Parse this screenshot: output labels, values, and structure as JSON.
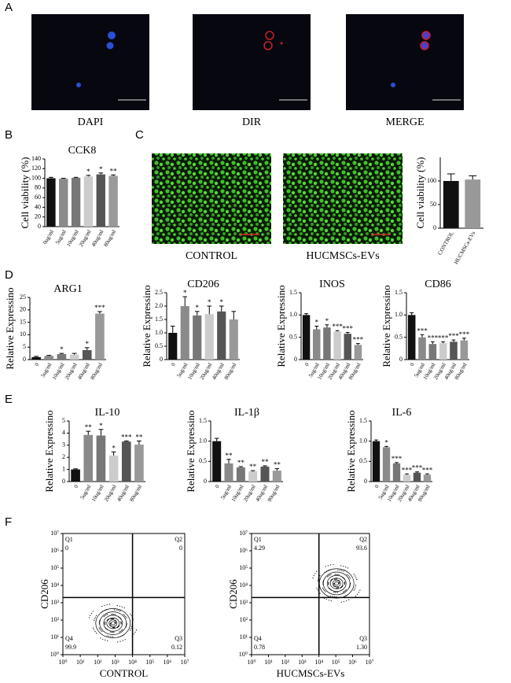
{
  "panel_labels": [
    "A",
    "B",
    "C",
    "D",
    "E",
    "F"
  ],
  "image_captions": {
    "A": [
      "DAPI",
      "DIR",
      "MERGE"
    ],
    "C": [
      "CONTROL",
      "HUCMSCs-EVs"
    ]
  },
  "chart_data": [
    {
      "type": "bar",
      "title": "CCK8",
      "ylabel": "Cell viability (%)",
      "categories": [
        "0ug/ml",
        "5ug/ml",
        "10ug/ml",
        "20ug/ml",
        "40ug/ml",
        "80ug/ml"
      ],
      "values": [
        100,
        99,
        101,
        104,
        108,
        105
      ],
      "errors": [
        2,
        1,
        1,
        2,
        3,
        2
      ],
      "significance": [
        null,
        null,
        null,
        "*",
        "*",
        "**"
      ],
      "colors": [
        "#111111",
        "#8a8a8a",
        "#777777",
        "#cccccc",
        "#555555",
        "#999999"
      ],
      "ylim": [
        0,
        140
      ],
      "yticks": [
        0,
        20,
        40,
        60,
        80,
        100,
        120,
        140
      ]
    },
    {
      "type": "bar",
      "ylabel": "Cell viability (%)",
      "categories": [
        "CONTROL",
        "HUCMSCs-EVs"
      ],
      "values": [
        100,
        103
      ],
      "errors": [
        15,
        8
      ],
      "colors": [
        "#111111",
        "#999999"
      ],
      "ylim": [
        0,
        150
      ],
      "yticks": [
        0,
        50,
        100
      ]
    },
    {
      "type": "bar",
      "title": "ARG1",
      "ylabel": "Relative Expressino",
      "categories": [
        "0",
        "5ug/ml",
        "10ug/ml",
        "20ug/ml",
        "40ug/ml",
        "80ug/ml"
      ],
      "values": [
        1,
        1.5,
        2.2,
        2,
        3.8,
        18.5
      ],
      "errors": [
        0.3,
        0.2,
        0.3,
        0.5,
        1,
        0.8
      ],
      "significance": [
        null,
        null,
        "*",
        null,
        "*",
        "***"
      ],
      "colors": [
        "#111111",
        "#8a8a8a",
        "#777777",
        "#cccccc",
        "#555555",
        "#999999"
      ],
      "ylim": [
        0,
        25
      ],
      "yticks": [
        0,
        5,
        10,
        15,
        20,
        25
      ]
    },
    {
      "type": "bar",
      "title": "CD206",
      "ylabel": "Relative Expressino",
      "categories": [
        "0",
        "5ug/ml",
        "10ug/ml",
        "20ug/ml",
        "40ug/ml",
        "80ug/ml"
      ],
      "values": [
        1,
        2,
        1.65,
        1.7,
        1.8,
        1.5
      ],
      "errors": [
        0.25,
        0.35,
        0.15,
        0.3,
        0.2,
        0.3
      ],
      "significance": [
        null,
        "*",
        "*",
        "*",
        "*",
        null
      ],
      "colors": [
        "#111111",
        "#8a8a8a",
        "#777777",
        "#cccccc",
        "#555555",
        "#999999"
      ],
      "ylim": [
        0,
        2.5
      ],
      "yticks": [
        0,
        0.5,
        {
          "value": 1,
          "label": "1.0"
        },
        1.5,
        {
          "value": 2,
          "label": "2.0"
        },
        2.5
      ]
    },
    {
      "type": "bar",
      "title": "INOS",
      "ylabel": "Relative Expressino",
      "categories": [
        "0",
        "5ug/ml",
        "10ug/ml",
        "20ug/ml",
        "40ug/ml",
        "80ug/ml"
      ],
      "values": [
        1,
        0.68,
        0.72,
        0.63,
        0.58,
        0.33
      ],
      "errors": [
        0.03,
        0.07,
        0.06,
        0.02,
        0.03,
        0.03
      ],
      "significance": [
        null,
        "*",
        "*",
        "***",
        "***",
        "***"
      ],
      "colors": [
        "#111111",
        "#8a8a8a",
        "#777777",
        "#cccccc",
        "#555555",
        "#999999"
      ],
      "ylim": [
        0,
        1.5
      ],
      "yticks": [
        0,
        0.5,
        {
          "value": 1,
          "label": "1.0"
        },
        1.5
      ]
    },
    {
      "type": "bar",
      "title": "CD86",
      "ylabel": "Relative Expressino",
      "categories": [
        "0",
        "5ug/ml",
        "10ug/ml",
        "20ug/ml",
        "40ug/ml",
        "80ug/ml"
      ],
      "values": [
        1,
        0.5,
        0.35,
        0.37,
        0.4,
        0.43
      ],
      "errors": [
        0.05,
        0.06,
        0.05,
        0.03,
        0.04,
        0.05
      ],
      "significance": [
        null,
        "***",
        "***",
        "***",
        "***",
        "***"
      ],
      "colors": [
        "#111111",
        "#8a8a8a",
        "#777777",
        "#cccccc",
        "#555555",
        "#999999"
      ],
      "ylim": [
        0,
        1.5
      ],
      "yticks": [
        0,
        0.5,
        {
          "value": 1,
          "label": "1.0"
        },
        1.5
      ]
    },
    {
      "type": "bar",
      "title": "IL-10",
      "ylabel": "Relative Expressino",
      "categories": [
        "0",
        "5ug/ml",
        "10ug/ml",
        "20ug/ml",
        "40ug/ml",
        "80ug/ml"
      ],
      "values": [
        1,
        3.85,
        3.8,
        2.15,
        3.3,
        3.05
      ],
      "errors": [
        0.05,
        0.3,
        0.5,
        0.3,
        0.05,
        0.3
      ],
      "significance": [
        null,
        "**",
        "*",
        "*",
        "***",
        "**"
      ],
      "colors": [
        "#111111",
        "#8a8a8a",
        "#777777",
        "#cccccc",
        "#555555",
        "#999999"
      ],
      "ylim": [
        0,
        5
      ],
      "yticks": [
        0,
        1,
        2,
        3,
        4,
        5
      ]
    },
    {
      "type": "bar",
      "title": "IL-1β",
      "ylabel": "Relative Expressino",
      "categories": [
        "0",
        "5ug/ml",
        "10ug/ml",
        "20ug/ml",
        "40ug/ml",
        "80ug/ml"
      ],
      "values": [
        1,
        0.45,
        0.35,
        0.25,
        0.37,
        0.27
      ],
      "errors": [
        0.07,
        0.1,
        0.02,
        0.02,
        0.02,
        0.05
      ],
      "significance": [
        null,
        "**",
        "**",
        "**",
        "**",
        "**"
      ],
      "colors": [
        "#111111",
        "#8a8a8a",
        "#777777",
        "#cccccc",
        "#555555",
        "#999999"
      ],
      "ylim": [
        0,
        1.5
      ],
      "yticks": [
        0,
        0.5,
        {
          "value": 1,
          "label": "1.0"
        },
        1.5
      ]
    },
    {
      "type": "bar",
      "title": "IL-6",
      "ylabel": "Relative Expressino",
      "categories": [
        "0",
        "5ug/ml",
        "10ug/ml",
        "20ug/ml",
        "40ug/ml",
        "80ug/ml"
      ],
      "values": [
        1,
        0.85,
        0.45,
        0.17,
        0.22,
        0.17
      ],
      "errors": [
        0.03,
        0.02,
        0.02,
        0.02,
        0.02,
        0.02
      ],
      "significance": [
        null,
        "*",
        "***",
        "***",
        "***",
        "***"
      ],
      "colors": [
        "#111111",
        "#8a8a8a",
        "#777777",
        "#cccccc",
        "#555555",
        "#999999"
      ],
      "ylim": [
        0,
        1.5
      ],
      "yticks": [
        0,
        0.5,
        {
          "value": 1,
          "label": "1.0"
        },
        1.5
      ]
    },
    {
      "type": "flow",
      "xlabel": "CONTROL",
      "ylabel": "CD206",
      "log_scale": true,
      "quadrants": [
        "Q1",
        "Q2",
        "Q3",
        "Q4"
      ],
      "values": [
        0,
        0,
        0.12,
        99.9
      ],
      "value_labels": [
        "0",
        "0",
        "0.12",
        "99.9"
      ],
      "gate": [
        10000,
        2000
      ],
      "color": "#000000",
      "xlim": [
        1,
        10000000
      ],
      "ylim": [
        1,
        10000000
      ],
      "xticks": [
        {
          "value": 1,
          "label": "10⁰"
        },
        {
          "value": 10,
          "label": "10¹"
        },
        {
          "value": 100,
          "label": "10²"
        },
        {
          "value": 1000,
          "label": "10³"
        },
        {
          "value": 10000,
          "label": "10⁴"
        },
        {
          "value": 100000,
          "label": "10⁵"
        },
        {
          "value": 1000000,
          "label": "10⁶"
        },
        {
          "value": 10000000,
          "label": "10⁷"
        }
      ],
      "yticks": [
        {
          "value": 1,
          "label": "10⁰"
        },
        {
          "value": 10,
          "label": "10¹"
        },
        {
          "value": 100,
          "label": "10²"
        },
        {
          "value": 1000,
          "label": "10³"
        },
        {
          "value": 10000,
          "label": "10⁴"
        },
        {
          "value": 100000,
          "label": "10⁵"
        },
        {
          "value": 1000000,
          "label": "10⁶"
        },
        {
          "value": 10000000,
          "label": "10⁷"
        }
      ]
    },
    {
      "type": "flow",
      "xlabel": "HUCMSCs-EVs",
      "ylabel": "CD206",
      "log_scale": true,
      "quadrants": [
        "Q1",
        "Q2",
        "Q3",
        "Q4"
      ],
      "values": [
        4.29,
        93.6,
        1.3,
        0.78
      ],
      "value_labels": [
        "4.29",
        "93.6",
        "1.30",
        "0.78"
      ],
      "gate": [
        10000,
        2000
      ],
      "color": "#000000",
      "xlim": [
        1,
        10000000
      ],
      "ylim": [
        1,
        10000000
      ],
      "xticks": [
        {
          "value": 1,
          "label": "10⁰"
        },
        {
          "value": 10,
          "label": "10¹"
        },
        {
          "value": 100,
          "label": "10²"
        },
        {
          "value": 1000,
          "label": "10³"
        },
        {
          "value": 10000,
          "label": "10⁴"
        },
        {
          "value": 100000,
          "label": "10⁵"
        },
        {
          "value": 1000000,
          "label": "10⁶"
        },
        {
          "value": 10000000,
          "label": "10⁷"
        }
      ],
      "yticks": [
        {
          "value": 1,
          "label": "10⁰"
        },
        {
          "value": 10,
          "label": "10¹"
        },
        {
          "value": 100,
          "label": "10²"
        },
        {
          "value": 1000,
          "label": "10³"
        },
        {
          "value": 10000,
          "label": "10⁴"
        },
        {
          "value": 100000,
          "label": "10⁵"
        },
        {
          "value": 1000000,
          "label": "10⁶"
        },
        {
          "value": 10000000,
          "label": "10⁷"
        }
      ]
    }
  ]
}
